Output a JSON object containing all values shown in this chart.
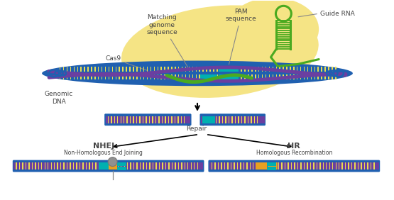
{
  "bg_color": "#ffffff",
  "yellow_blob_color": "#f5e485",
  "dna_blue_color": "#2060b0",
  "dna_purple_color": "#6b3fa0",
  "dna_teal_color": "#00b0b0",
  "dna_yellow_color": "#e8dc50",
  "guide_rna_color": "#4aaa20",
  "cas9_label": "Cas9",
  "genomic_dna_label": "Genomic\nDNA",
  "matching_label": "Matching\ngenome\nsequence",
  "pam_label": "PAM\nsequence",
  "guide_rna_label": "Guide RNA",
  "repair_label": "Repair",
  "nhej_label": "NHEJ",
  "nhej_sublabel": "Non-Homologous End Joining",
  "hr_label": "HR",
  "hr_sublabel": "Homologous Recombination",
  "nhej_orange": "#e8a020",
  "nhej_gray": "#909090",
  "hr_orange": "#e8a020",
  "label_color": "#444444"
}
